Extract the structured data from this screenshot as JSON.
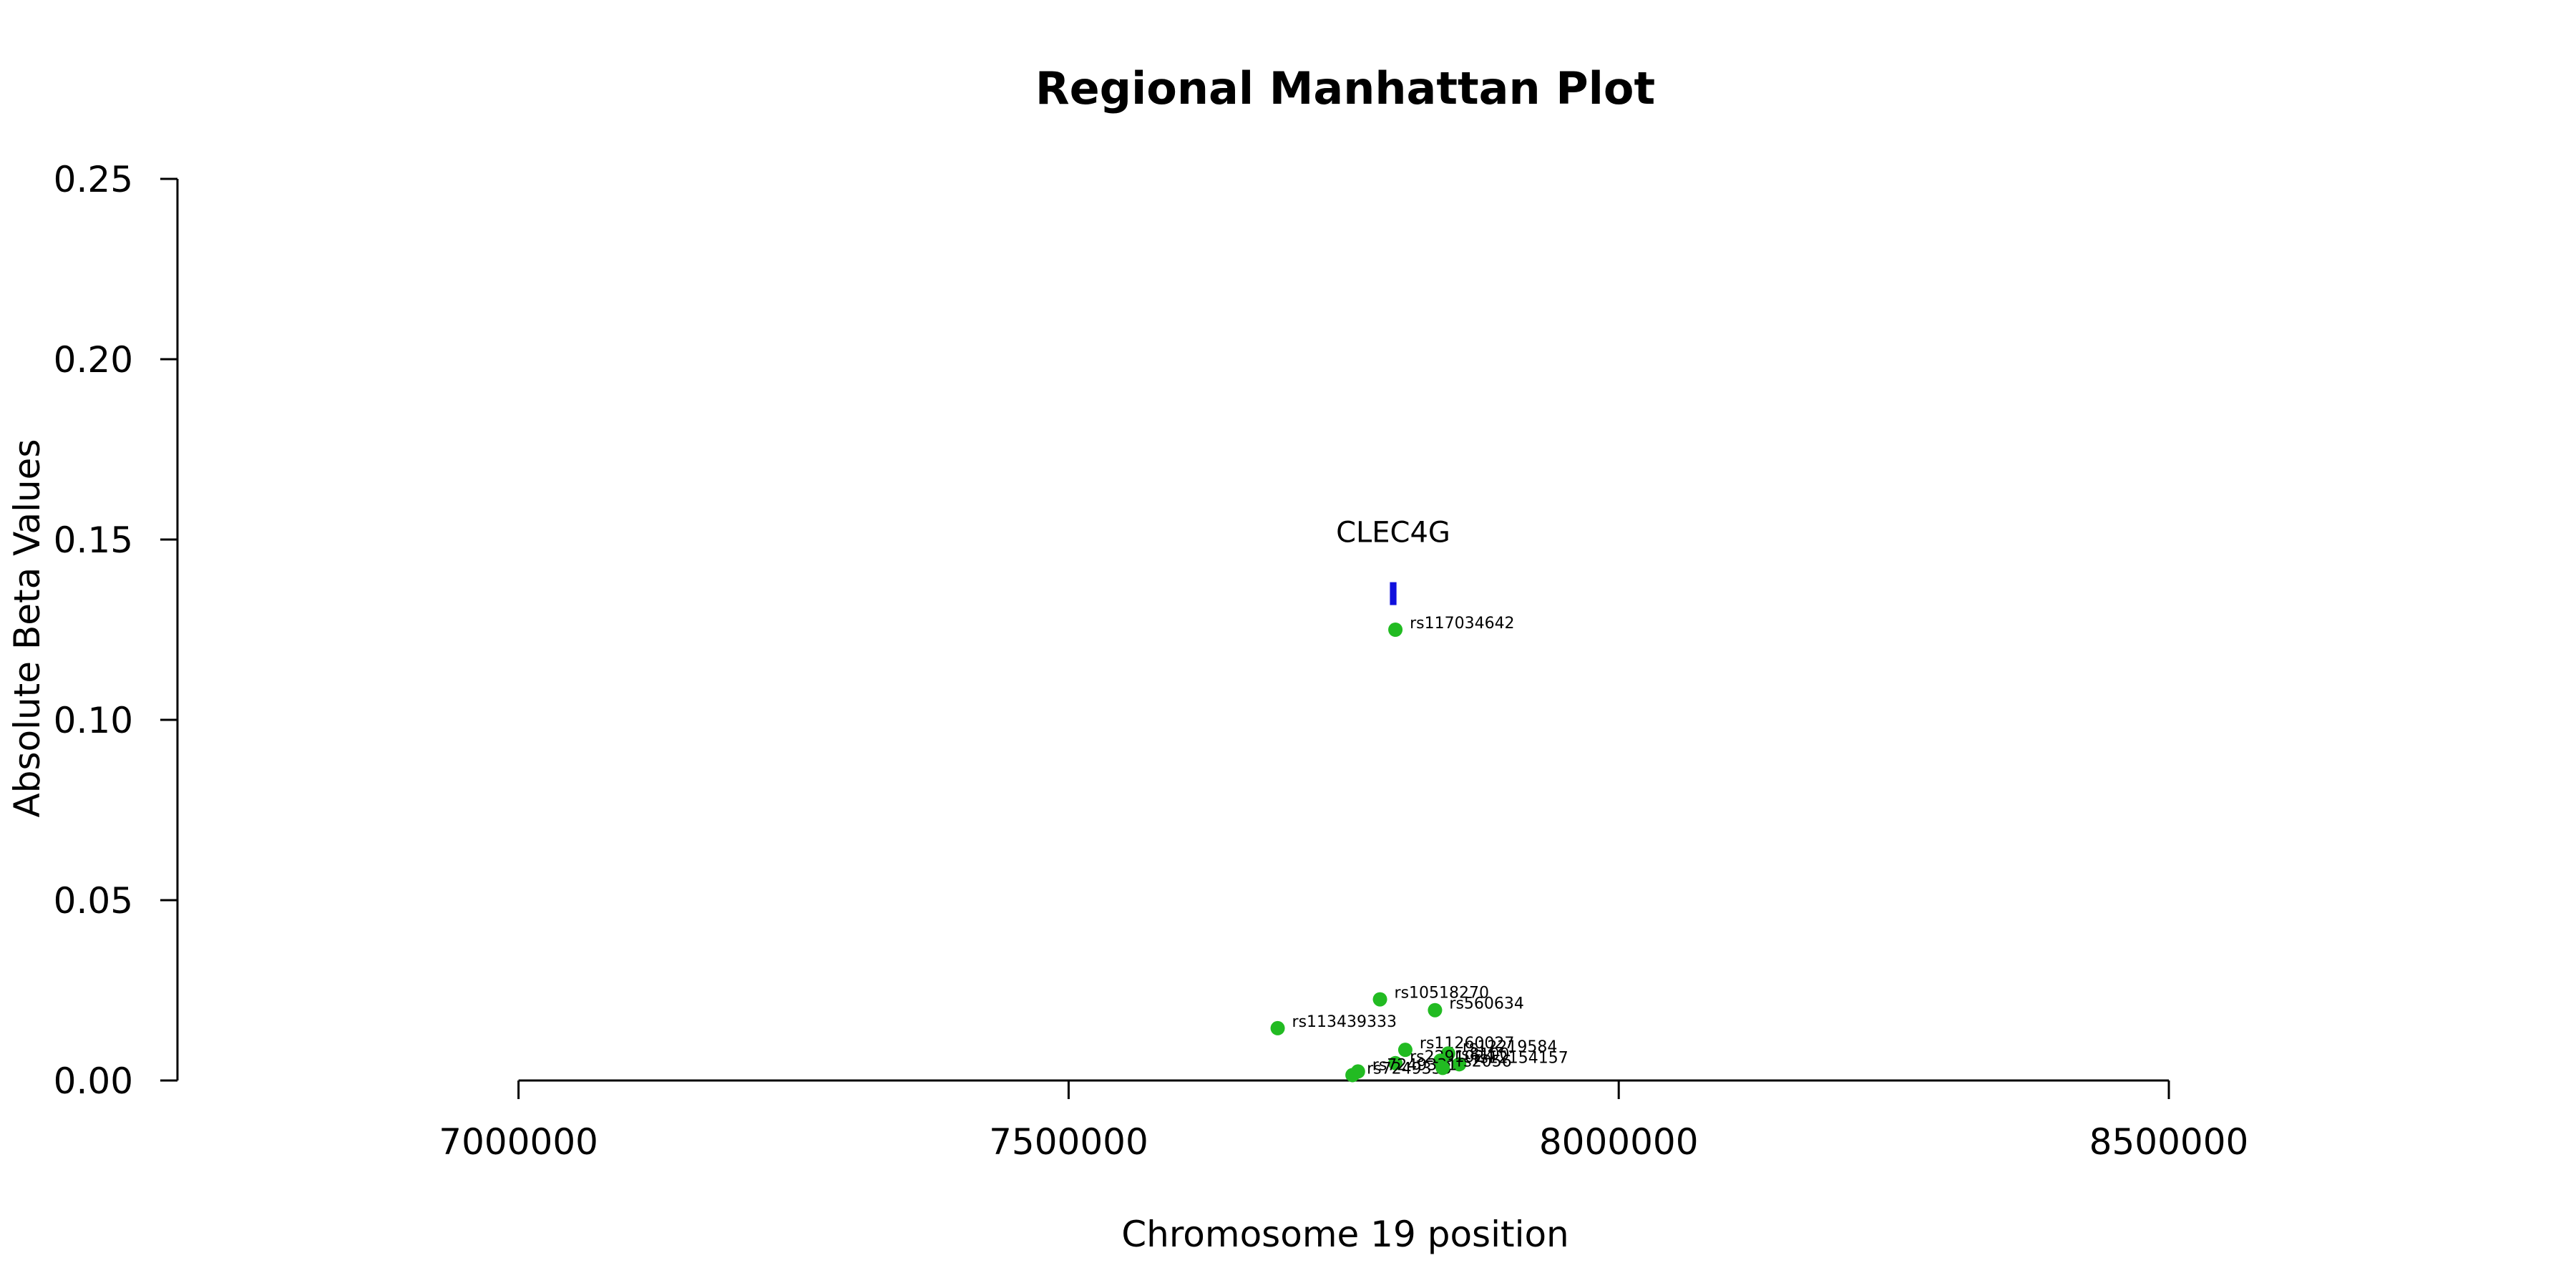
{
  "chart_data": {
    "type": "scatter",
    "title": "Regional Manhattan Plot",
    "xlabel": "Chromosome 19 position",
    "ylabel": "Absolute Beta Values",
    "xlim": [
      6690000,
      8740000
    ],
    "ylim": [
      0,
      0.25
    ],
    "x_ticks": [
      7000000,
      7500000,
      8000000,
      8500000
    ],
    "x_tick_labels": [
      "7000000",
      "7500000",
      "8000000",
      "8500000"
    ],
    "y_ticks": [
      0,
      0.05,
      0.1,
      0.15,
      0.2,
      0.25
    ],
    "y_tick_labels": [
      "0.00",
      "0.05",
      "0.10",
      "0.15",
      "0.20",
      "0.25"
    ],
    "grid": false,
    "point_color": "#22bb22",
    "points": [
      {
        "label": "rs117034642",
        "x": 7797000,
        "y": 0.125
      },
      {
        "label": "rs10518270",
        "x": 7783000,
        "y": 0.0225
      },
      {
        "label": "rs560634",
        "x": 7833000,
        "y": 0.0195
      },
      {
        "label": "rs113439333",
        "x": 7690000,
        "y": 0.0145
      },
      {
        "label": "rs11260027",
        "x": 7806000,
        "y": 0.0085
      },
      {
        "label": "rs12219584",
        "x": 7845000,
        "y": 0.0075
      },
      {
        "label": "rs12154157",
        "x": 7855000,
        "y": 0.0045
      },
      {
        "label": "rs2291024",
        "x": 7797000,
        "y": 0.0048
      },
      {
        "label": "rs8100",
        "x": 7838000,
        "y": 0.0055
      },
      {
        "label": "rs7249331",
        "x": 7763000,
        "y": 0.0025
      },
      {
        "label": "rs7249333",
        "x": 7758000,
        "y": 0.0015
      },
      {
        "label": "rs2056",
        "x": 7840000,
        "y": 0.0035
      }
    ],
    "genes": [
      {
        "name": "CLEC4G",
        "start": 7792000,
        "end": 7798000,
        "y": 0.135,
        "color": "#1010dd"
      }
    ]
  }
}
